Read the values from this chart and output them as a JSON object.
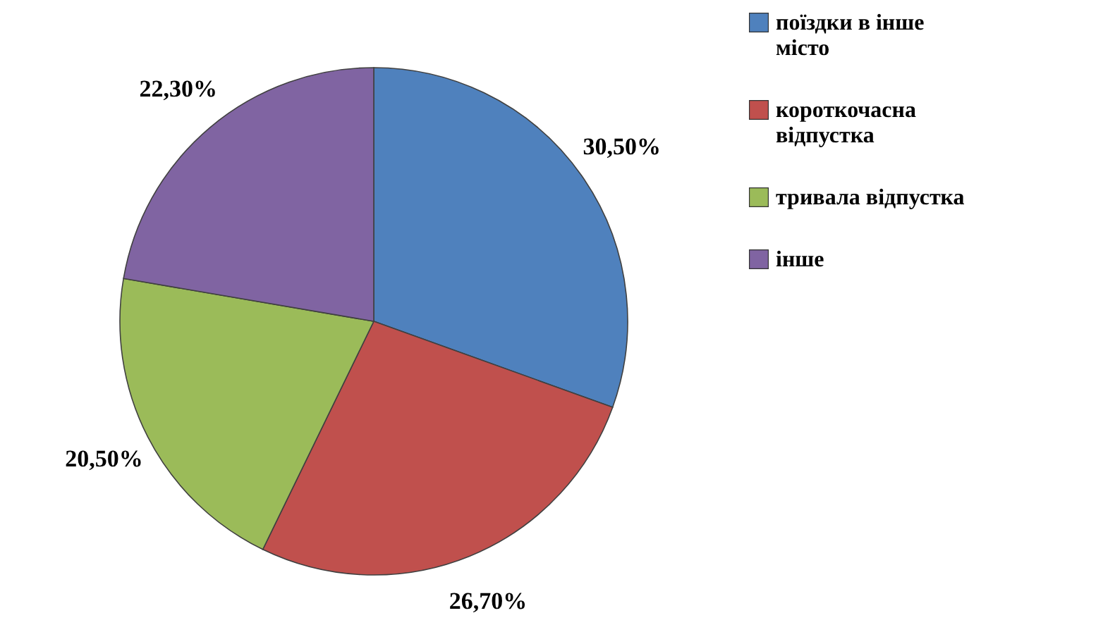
{
  "chart_data": {
    "type": "pie",
    "categories": [
      "поїздки в інше місто",
      "короткочасна відпустка",
      "тривала відпустка",
      "інше"
    ],
    "values": [
      30.5,
      26.7,
      20.5,
      22.3
    ],
    "colors": [
      "#4f81bd",
      "#c0504d",
      "#9bbb59",
      "#8064a2"
    ],
    "value_labels": [
      "30,50%",
      "26,70%",
      "20,50%",
      "22,30%"
    ],
    "legend": "right"
  }
}
